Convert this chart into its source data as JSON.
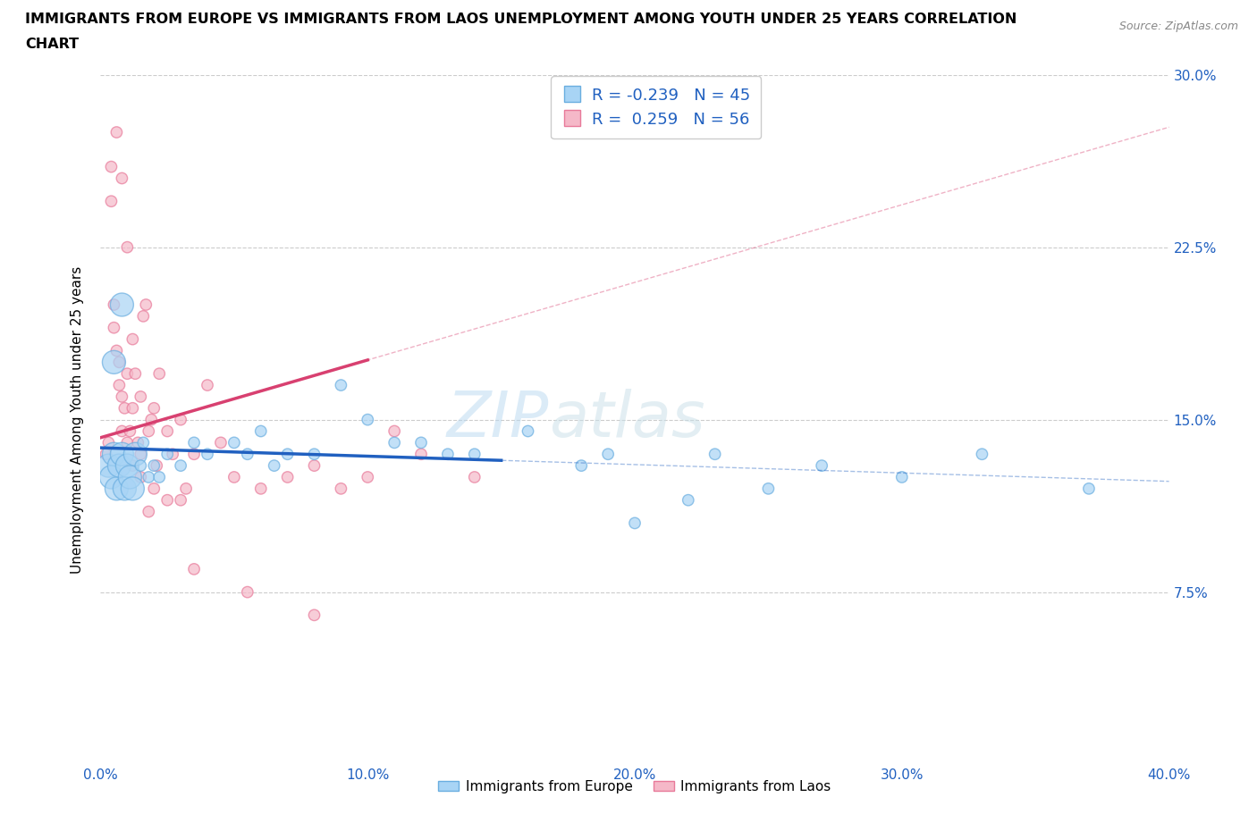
{
  "title_line1": "IMMIGRANTS FROM EUROPE VS IMMIGRANTS FROM LAOS UNEMPLOYMENT AMONG YOUTH UNDER 25 YEARS CORRELATION",
  "title_line2": "CHART",
  "source": "Source: ZipAtlas.com",
  "ylabel": "Unemployment Among Youth under 25 years",
  "xlim": [
    0.0,
    40.0
  ],
  "ylim": [
    0.0,
    30.0
  ],
  "europe_R": -0.239,
  "europe_N": 45,
  "laos_R": 0.259,
  "laos_N": 56,
  "europe_fill": "#a8d4f5",
  "laos_fill": "#f5b8c8",
  "europe_edge": "#6aaee0",
  "laos_edge": "#e87a9a",
  "europe_line_color": "#2060c0",
  "laos_line_color": "#d84070",
  "watermark_color": "#c8dff0",
  "europe_scatter_x": [
    0.3,
    0.4,
    0.5,
    0.6,
    0.7,
    0.8,
    0.9,
    1.0,
    1.1,
    1.2,
    1.3,
    1.5,
    1.6,
    1.8,
    2.0,
    2.2,
    2.5,
    3.0,
    3.5,
    4.0,
    5.0,
    5.5,
    6.0,
    6.5,
    7.0,
    8.0,
    9.0,
    10.0,
    11.0,
    12.0,
    13.0,
    14.0,
    16.0,
    18.0,
    19.0,
    20.0,
    22.0,
    23.0,
    25.0,
    27.0,
    30.0,
    33.0,
    37.0,
    0.5,
    0.8
  ],
  "europe_scatter_y": [
    13.0,
    12.5,
    13.5,
    12.0,
    13.0,
    13.5,
    12.0,
    13.0,
    12.5,
    12.0,
    13.5,
    13.0,
    14.0,
    12.5,
    13.0,
    12.5,
    13.5,
    13.0,
    14.0,
    13.5,
    14.0,
    13.5,
    14.5,
    13.0,
    13.5,
    13.5,
    16.5,
    15.0,
    14.0,
    14.0,
    13.5,
    13.5,
    14.5,
    13.0,
    13.5,
    10.5,
    11.5,
    13.5,
    12.0,
    13.0,
    12.5,
    13.5,
    12.0,
    17.5,
    20.0
  ],
  "europe_scatter_size": [
    80,
    80,
    80,
    80,
    80,
    80,
    80,
    80,
    80,
    80,
    80,
    80,
    80,
    80,
    80,
    80,
    80,
    80,
    80,
    80,
    80,
    80,
    80,
    80,
    80,
    80,
    80,
    80,
    80,
    80,
    80,
    80,
    80,
    80,
    80,
    80,
    80,
    80,
    80,
    80,
    80,
    80,
    80,
    80,
    80
  ],
  "laos_scatter_x": [
    0.2,
    0.3,
    0.4,
    0.4,
    0.5,
    0.5,
    0.6,
    0.7,
    0.7,
    0.8,
    0.8,
    0.9,
    1.0,
    1.0,
    1.1,
    1.2,
    1.2,
    1.3,
    1.4,
    1.5,
    1.5,
    1.6,
    1.7,
    1.8,
    1.9,
    2.0,
    2.1,
    2.2,
    2.5,
    2.7,
    3.0,
    3.2,
    3.5,
    4.0,
    4.5,
    5.0,
    6.0,
    7.0,
    8.0,
    9.0,
    10.0,
    11.0,
    12.0,
    14.0,
    1.0,
    1.5,
    2.0,
    3.0,
    0.6,
    0.8,
    1.2,
    1.8,
    2.5,
    3.5,
    5.5,
    8.0
  ],
  "laos_scatter_y": [
    13.5,
    14.0,
    26.0,
    24.5,
    20.0,
    19.0,
    18.0,
    17.5,
    16.5,
    16.0,
    14.5,
    15.5,
    17.0,
    14.0,
    14.5,
    15.5,
    18.5,
    17.0,
    14.0,
    16.0,
    13.5,
    19.5,
    20.0,
    14.5,
    15.0,
    15.5,
    13.0,
    17.0,
    14.5,
    13.5,
    15.0,
    12.0,
    13.5,
    16.5,
    14.0,
    12.5,
    12.0,
    12.5,
    13.0,
    12.0,
    12.5,
    14.5,
    13.5,
    12.5,
    22.5,
    12.5,
    12.0,
    11.5,
    27.5,
    25.5,
    13.0,
    11.0,
    11.5,
    8.5,
    7.5,
    6.5
  ],
  "laos_scatter_size": [
    80,
    80,
    80,
    80,
    80,
    80,
    80,
    80,
    80,
    80,
    80,
    80,
    80,
    80,
    80,
    80,
    80,
    80,
    80,
    80,
    80,
    80,
    80,
    80,
    80,
    80,
    80,
    80,
    80,
    80,
    80,
    80,
    80,
    80,
    80,
    80,
    80,
    80,
    80,
    80,
    80,
    80,
    80,
    80,
    80,
    80,
    80,
    80,
    80,
    80,
    80,
    80,
    80,
    80,
    80,
    80
  ]
}
